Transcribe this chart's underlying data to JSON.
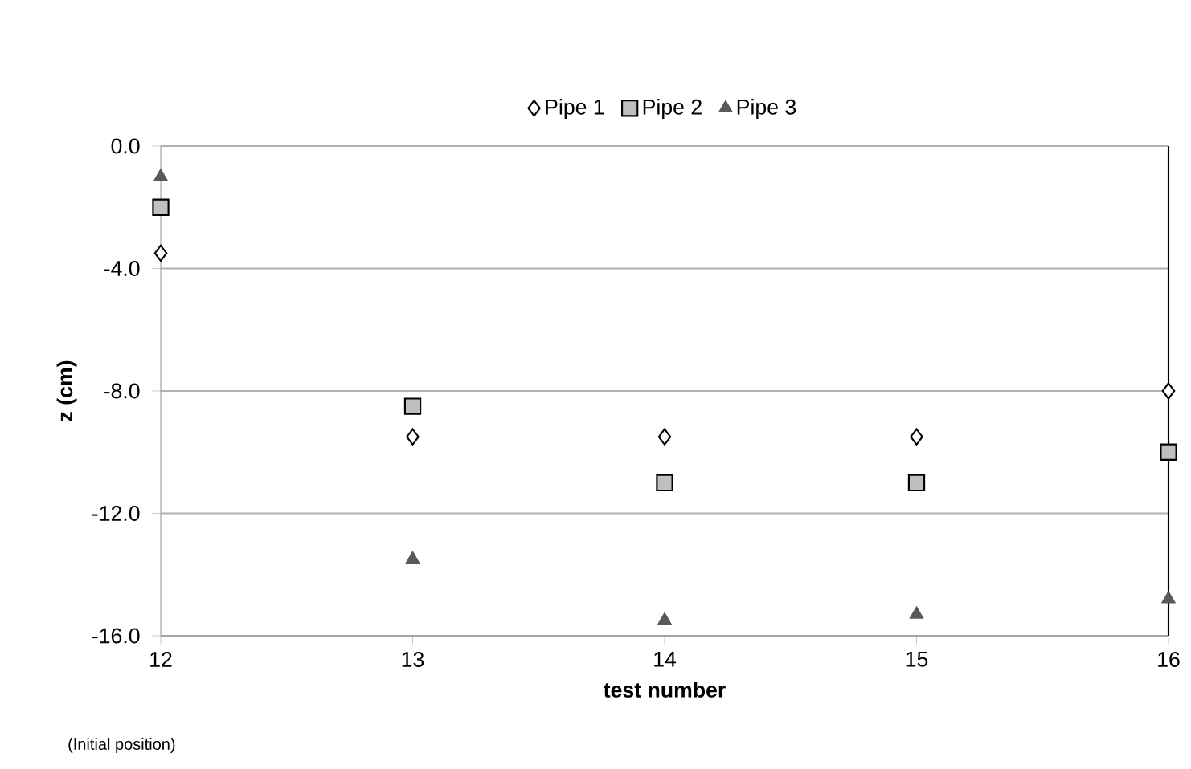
{
  "chart_data": {
    "type": "scatter",
    "xlabel": "test number",
    "ylabel": "z (cm)",
    "x": [
      12,
      13,
      14,
      15,
      16
    ],
    "series": [
      {
        "name": "Pipe 1",
        "color": "#000000",
        "marker": "diamond",
        "values": [
          -3.5,
          -9.5,
          -9.5,
          -9.5,
          -8.0
        ]
      },
      {
        "name": "Pipe 2",
        "color": "#bfbfbf",
        "marker": "square",
        "values": [
          -2.0,
          -8.5,
          -11.0,
          -11.0,
          -10.0
        ]
      },
      {
        "name": "Pipe 3",
        "color": "#595959",
        "marker": "triangle",
        "values": [
          -1.0,
          -13.5,
          -15.5,
          -15.3,
          -14.8
        ]
      }
    ],
    "xlim": [
      12,
      16
    ],
    "xticks": [
      12,
      13,
      14,
      15,
      16
    ],
    "ylim": [
      -16,
      0
    ],
    "yticks": [
      {
        "value": -16,
        "label": "-16.0"
      },
      {
        "value": -12,
        "label": "-12.0"
      },
      {
        "value": -8,
        "label": "-8.0"
      },
      {
        "value": -4,
        "label": "-4.0"
      },
      {
        "value": 0,
        "label": "0.0"
      }
    ],
    "grid": "y",
    "legend": "top",
    "ref_lines": [
      {
        "axis": "x",
        "value": 16,
        "color": "#000000"
      }
    ],
    "annotations": [
      "(Initial position)"
    ]
  }
}
